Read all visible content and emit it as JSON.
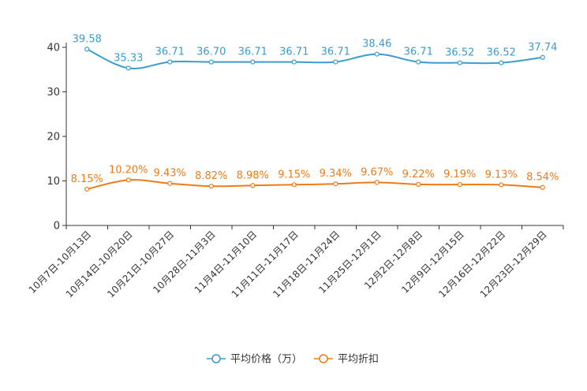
{
  "chart_data": {
    "type": "line",
    "title": "",
    "xlabel": "",
    "ylabel": "",
    "ylim": [
      0,
      40
    ],
    "yticks": [
      "0",
      "10",
      "20",
      "30",
      "40"
    ],
    "grid": false,
    "legend_position": "bottom-center",
    "categories": [
      "10月7日-10月13日",
      "10月14日-10月20日",
      "10月21日-10月27日",
      "10月28日-11月3日",
      "11月4日-11月10日",
      "11月11日-11月17日",
      "11月18日-11月24日",
      "11月25日-12月1日",
      "12月2日-12月8日",
      "12月9日-12月15日",
      "12月16日-12月22日",
      "12月23日-12月29日"
    ],
    "series": [
      {
        "name": "平均价格（万）",
        "color": "#3b9ccf",
        "values": [
          39.58,
          35.33,
          36.71,
          36.7,
          36.71,
          36.71,
          36.71,
          38.46,
          36.71,
          36.52,
          36.52,
          37.74
        ],
        "labels": [
          "39.58",
          "35.33",
          "36.71",
          "36.70",
          "36.71",
          "36.71",
          "36.71",
          "38.46",
          "36.71",
          "36.52",
          "36.52",
          "37.74"
        ]
      },
      {
        "name": "平均折扣",
        "color": "#f07a16",
        "values": [
          8.15,
          10.2,
          9.43,
          8.82,
          8.98,
          9.15,
          9.34,
          9.67,
          9.22,
          9.19,
          9.13,
          8.54
        ],
        "labels": [
          "8.15%",
          "10.20%",
          "9.43%",
          "8.82%",
          "8.98%",
          "9.15%",
          "9.34%",
          "9.67%",
          "9.22%",
          "9.19%",
          "9.13%",
          "8.54%"
        ]
      }
    ]
  }
}
